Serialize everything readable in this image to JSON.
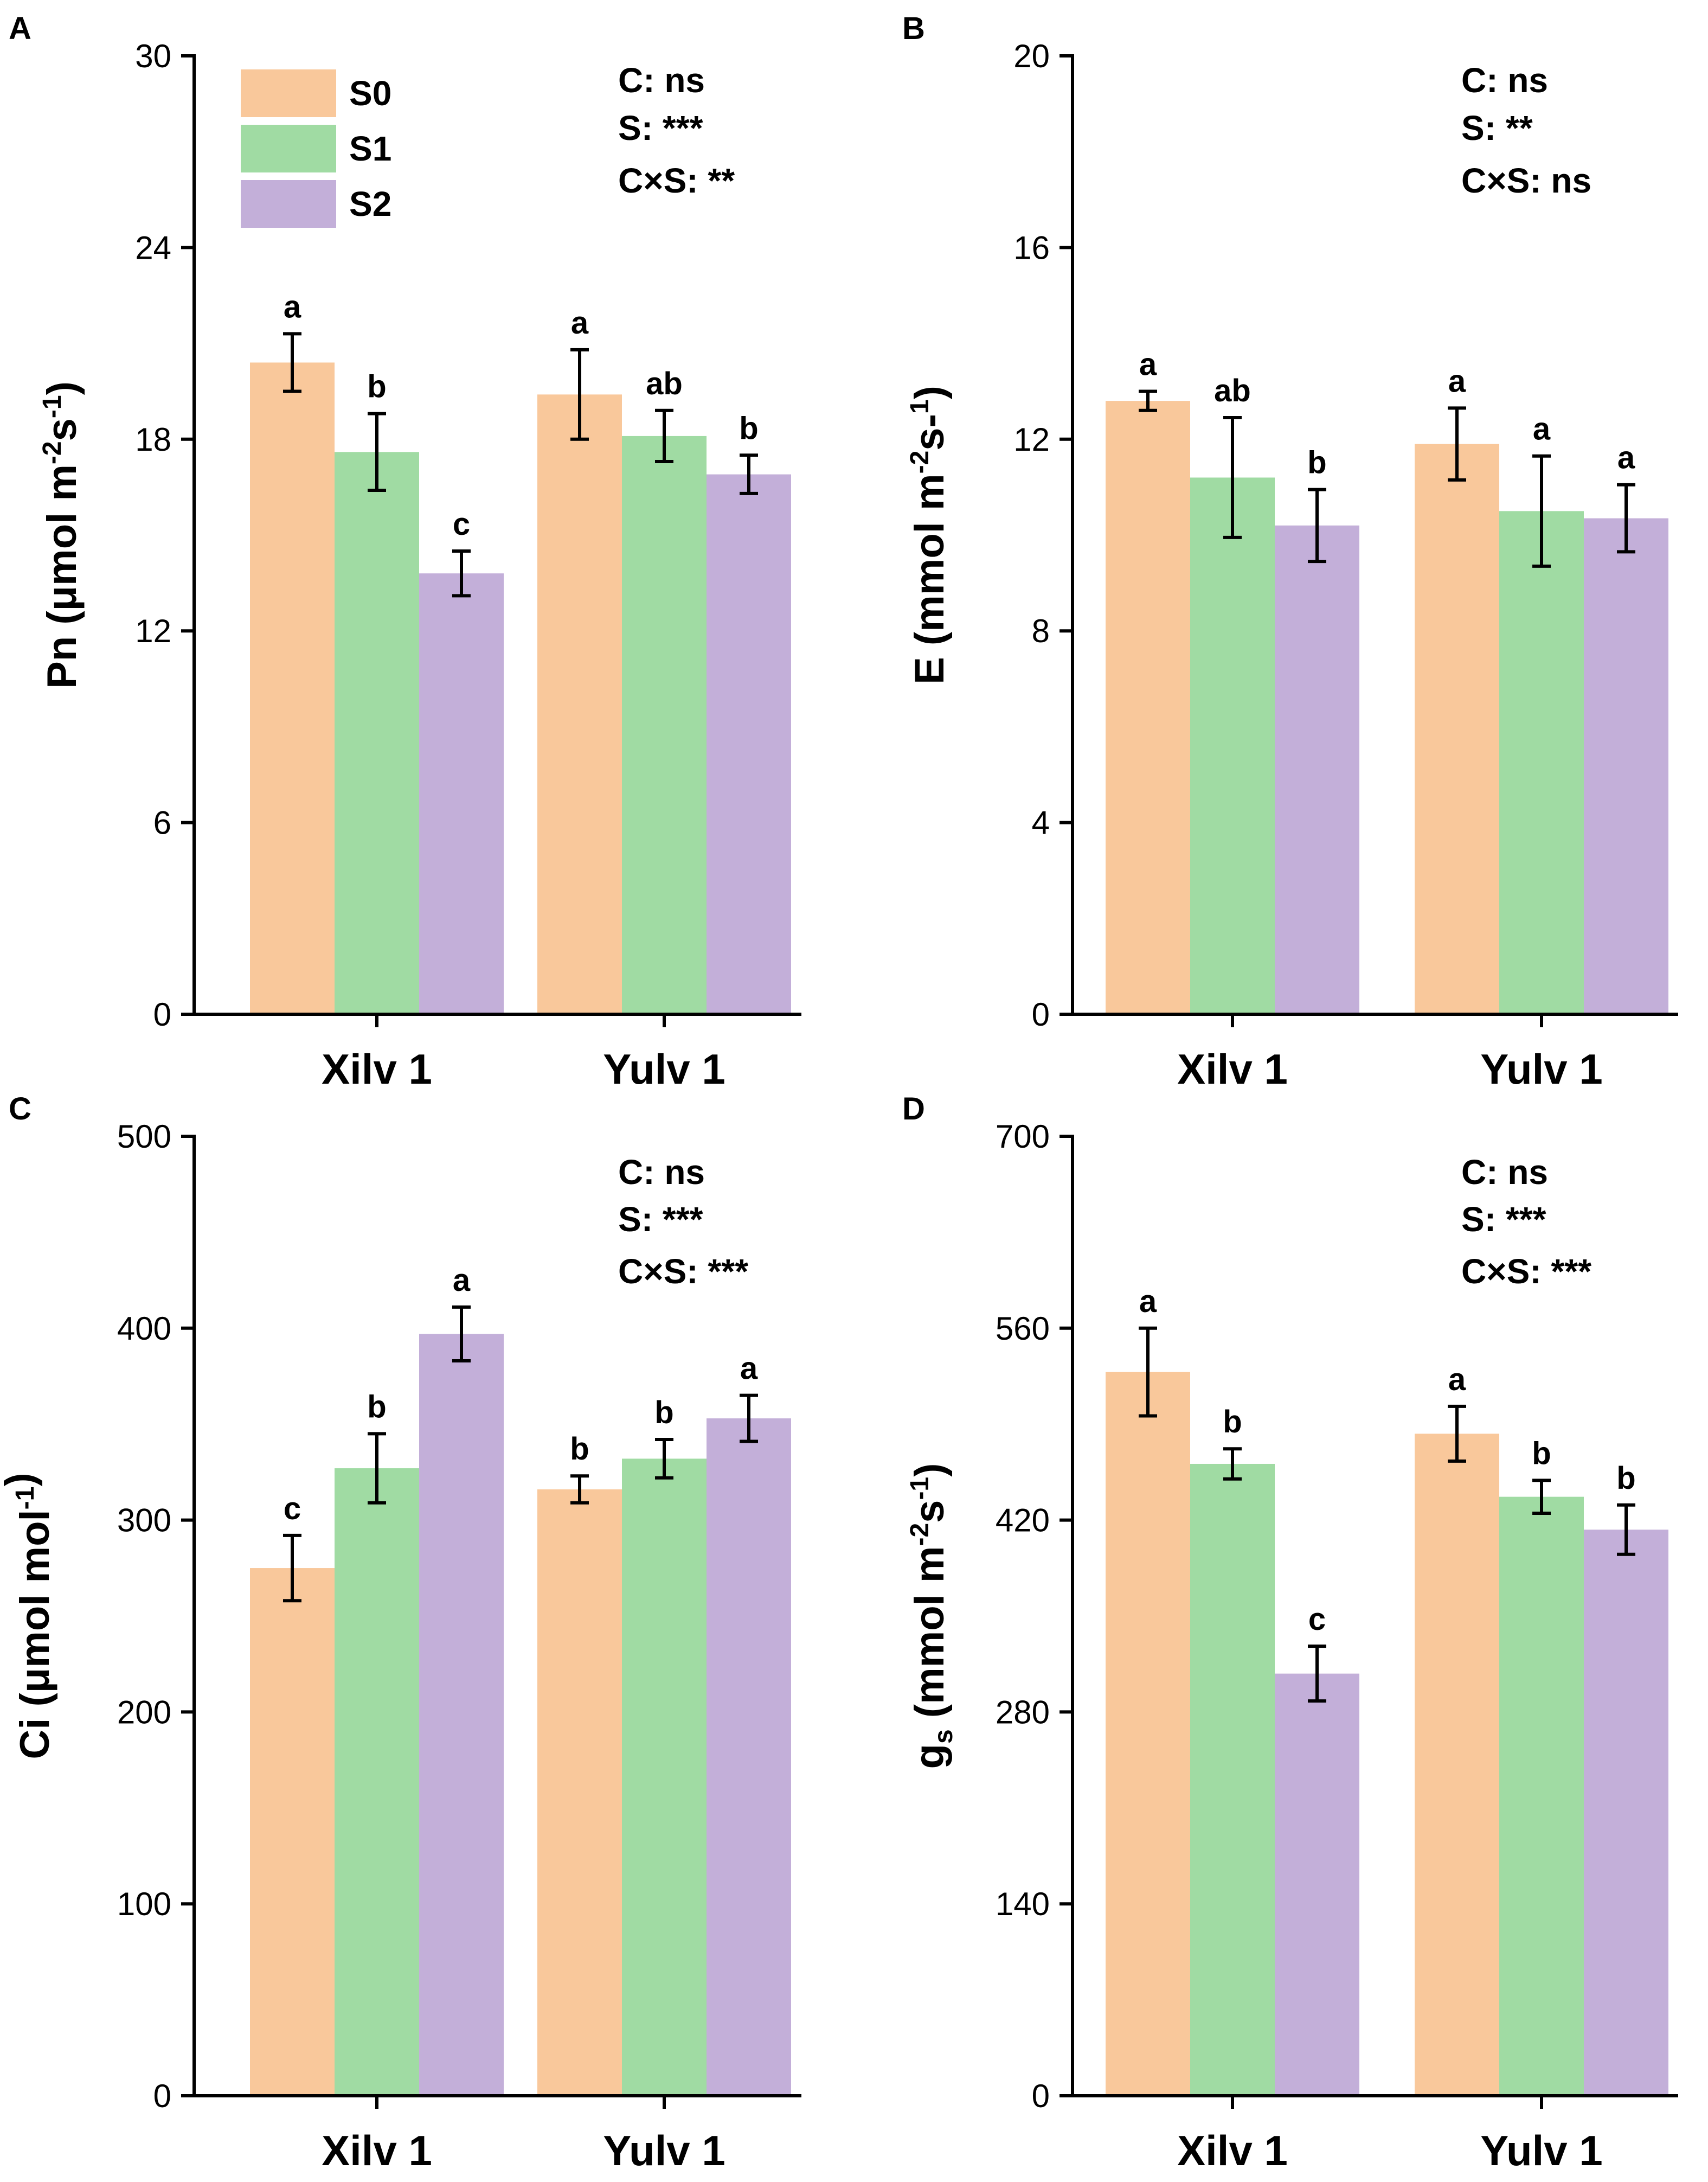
{
  "colors": {
    "S0": "#f9c89b",
    "S1": "#a0dba3",
    "S2": "#c3afd9"
  },
  "legend": [
    {
      "key": "S0",
      "label": "S0"
    },
    {
      "key": "S1",
      "label": "S1"
    },
    {
      "key": "S2",
      "label": "S2"
    }
  ],
  "chart_data": [
    {
      "id": "A",
      "panel": "A",
      "type": "bar",
      "categories": [
        "Xilv 1",
        "Yulv 1"
      ],
      "ylabel": {
        "text": "Pn (μmol m",
        "sup1": "-2",
        "mid": "s",
        "sup2": "-1",
        "end": ")"
      },
      "ylim": [
        0,
        30
      ],
      "yticks": [
        0,
        6,
        12,
        18,
        24,
        30
      ],
      "annotations": [
        "C: ns",
        "S: ***",
        "C×S: **"
      ],
      "legend_shown": true,
      "series": [
        {
          "name": "S0",
          "values": [
            20.4,
            19.4
          ],
          "errors": [
            0.9,
            1.4
          ],
          "letters": [
            "a",
            "a"
          ]
        },
        {
          "name": "S1",
          "values": [
            17.6,
            18.1
          ],
          "errors": [
            1.2,
            0.8
          ],
          "letters": [
            "b",
            "ab"
          ]
        },
        {
          "name": "S2",
          "values": [
            13.8,
            16.9
          ],
          "errors": [
            0.7,
            0.6
          ],
          "letters": [
            "c",
            "b"
          ]
        }
      ]
    },
    {
      "id": "B",
      "panel": "B",
      "type": "bar",
      "categories": [
        "Xilv 1",
        "Yulv 1"
      ],
      "ylabel": {
        "text": "E (mmol m",
        "sup1": "-2",
        "mid": "s-",
        "sup2": "1",
        "end": ")"
      },
      "ylim": [
        0,
        20
      ],
      "yticks": [
        0,
        4,
        8,
        12,
        16,
        20
      ],
      "annotations": [
        "C: ns",
        "S: **",
        "C×S: ns"
      ],
      "legend_shown": false,
      "series": [
        {
          "name": "S0",
          "values": [
            12.8,
            11.9
          ],
          "errors": [
            0.2,
            0.75
          ],
          "letters": [
            "a",
            "a"
          ]
        },
        {
          "name": "S1",
          "values": [
            11.2,
            10.5
          ],
          "errors": [
            1.25,
            1.15
          ],
          "letters": [
            "ab",
            "a"
          ]
        },
        {
          "name": "S2",
          "values": [
            10.2,
            10.35
          ],
          "errors": [
            0.75,
            0.7
          ],
          "letters": [
            "b",
            "a"
          ]
        }
      ]
    },
    {
      "id": "C",
      "panel": "C",
      "type": "bar",
      "categories": [
        "Xilv 1",
        "Yulv 1"
      ],
      "ylabel": {
        "text": "Ci (μmol mol",
        "sup1": "-1",
        "mid": "",
        "sup2": "",
        "end": ")"
      },
      "ylim": [
        0,
        500
      ],
      "yticks": [
        0,
        100,
        200,
        300,
        400,
        500
      ],
      "annotations": [
        "C: ns",
        "S: ***",
        "C×S: ***"
      ],
      "legend_shown": false,
      "series": [
        {
          "name": "S0",
          "values": [
            275,
            316
          ],
          "errors": [
            17,
            7
          ],
          "letters": [
            "c",
            "b"
          ]
        },
        {
          "name": "S1",
          "values": [
            327,
            332
          ],
          "errors": [
            18,
            10
          ],
          "letters": [
            "b",
            "b"
          ]
        },
        {
          "name": "S2",
          "values": [
            397,
            353
          ],
          "errors": [
            14,
            12
          ],
          "letters": [
            "a",
            "a"
          ]
        }
      ]
    },
    {
      "id": "D",
      "panel": "D",
      "type": "bar",
      "categories": [
        "Xilv 1",
        "Yulv 1"
      ],
      "ylabel": {
        "text": "g",
        "sub": "s",
        "rest": " (mmol m",
        "sup1": "-2",
        "mid": "s",
        "sup2": "-1",
        "end": ")"
      },
      "ylim": [
        0,
        700
      ],
      "yticks": [
        0,
        140,
        280,
        420,
        560,
        700
      ],
      "annotations": [
        "C: ns",
        "S: ***",
        "C×S: ***"
      ],
      "legend_shown": false,
      "series": [
        {
          "name": "S0",
          "values": [
            528,
            483
          ],
          "errors": [
            32,
            20
          ],
          "letters": [
            "a",
            "a"
          ]
        },
        {
          "name": "S1",
          "values": [
            461,
            437
          ],
          "errors": [
            11,
            12
          ],
          "letters": [
            "b",
            "b"
          ]
        },
        {
          "name": "S2",
          "values": [
            308,
            413
          ],
          "errors": [
            20,
            18
          ],
          "letters": [
            "c",
            "b"
          ]
        }
      ]
    }
  ]
}
